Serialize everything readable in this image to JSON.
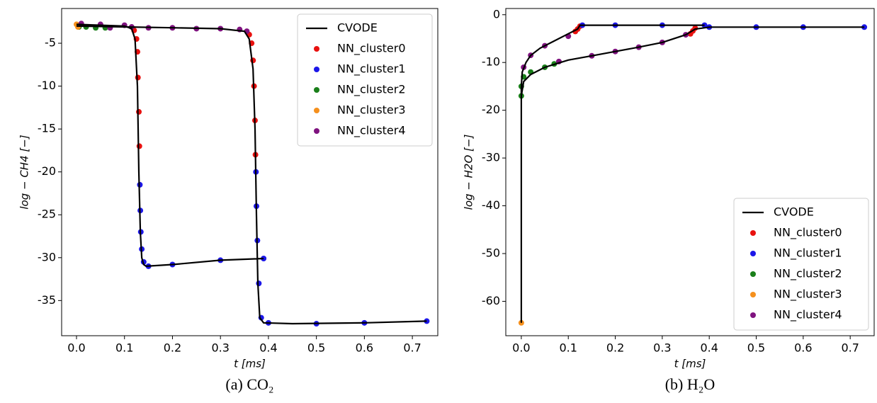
{
  "chart_data": [
    {
      "type": "line",
      "caption": "(a) CO₂",
      "xlabel": "t [ms]",
      "ylabel": "log − CH4 [−]",
      "xlim": [
        -0.031,
        0.753
      ],
      "ylim": [
        -39.1,
        -0.95
      ],
      "xticks": [
        {
          "value": 0,
          "label": "0.0"
        },
        {
          "value": 0.1,
          "label": "0.1"
        },
        {
          "value": 0.2,
          "label": "0.2"
        },
        {
          "value": 0.3,
          "label": "0.3"
        },
        {
          "value": 0.4,
          "label": "0.4"
        },
        {
          "value": 0.5,
          "label": "0.5"
        },
        {
          "value": 0.6,
          "label": "0.6"
        },
        {
          "value": 0.7,
          "label": "0.7"
        }
      ],
      "yticks": [
        -5,
        -10,
        -15,
        -20,
        -25,
        -30,
        -35
      ],
      "legend": "upper right",
      "series": [
        {
          "name": "CVODE",
          "type": "line",
          "color": "#000000",
          "x": [
            0,
            0.05,
            0.1,
            0.115,
            0.122,
            0.127,
            0.13,
            0.133,
            0.136,
            0.14,
            0.145,
            0.2,
            0.3,
            0.39,
            null,
            0,
            0.1,
            0.2,
            0.3,
            0.35,
            0.36,
            0.368,
            0.372,
            0.375,
            0.378,
            0.382,
            0.39,
            0.45,
            0.6,
            0.73
          ],
          "values": [
            -2.8,
            -2.9,
            -3.0,
            -3.3,
            -4.5,
            -10,
            -20,
            -27,
            -30,
            -30.8,
            -31,
            -30.8,
            -30.3,
            -30.1,
            null,
            -3.0,
            -3.1,
            -3.2,
            -3.3,
            -3.6,
            -4.5,
            -8,
            -15,
            -25,
            -33,
            -37,
            -37.6,
            -37.7,
            -37.6,
            -37.4
          ]
        },
        {
          "name": "NN_cluster0",
          "type": "scatter",
          "color": "#e8110f",
          "x": [
            0.12,
            0.125,
            0.127,
            0.128,
            0.13,
            0.131,
            0.36,
            0.365,
            0.368,
            0.37,
            0.372,
            0.373
          ],
          "values": [
            -3.5,
            -4.5,
            -6,
            -9,
            -13,
            -17,
            -4,
            -5,
            -7,
            -10,
            -14,
            -18
          ]
        },
        {
          "name": "NN_cluster1",
          "type": "scatter",
          "color": "#1c17e8",
          "x": [
            0.132,
            0.133,
            0.134,
            0.136,
            0.14,
            0.15,
            0.2,
            0.3,
            0.39,
            0.374,
            0.375,
            0.377,
            0.38,
            0.385,
            0.4,
            0.5,
            0.6,
            0.73
          ],
          "values": [
            -21.5,
            -24.5,
            -27,
            -29,
            -30.5,
            -31,
            -30.8,
            -30.3,
            -30.1,
            -20,
            -24,
            -28,
            -33,
            -37,
            -37.6,
            -37.7,
            -37.6,
            -37.4
          ]
        },
        {
          "name": "NN_cluster2",
          "type": "scatter",
          "color": "#1a7f1a",
          "x": [
            0.005,
            0.02,
            0.04,
            0.06
          ],
          "values": [
            -3.1,
            -3.1,
            -3.2,
            -3.2
          ]
        },
        {
          "name": "NN_cluster3",
          "type": "scatter",
          "color": "#f5901d",
          "x": [
            0,
            0.003
          ],
          "values": [
            -2.8,
            -3.1
          ]
        },
        {
          "name": "NN_cluster4",
          "type": "scatter",
          "color": "#7f137f",
          "x": [
            0.01,
            0.05,
            0.1,
            0.115,
            0.07,
            0.15,
            0.2,
            0.25,
            0.3,
            0.34,
            0.355
          ],
          "values": [
            -2.7,
            -2.8,
            -2.9,
            -3.1,
            -3.2,
            -3.2,
            -3.2,
            -3.3,
            -3.3,
            -3.4,
            -3.6
          ]
        }
      ]
    },
    {
      "type": "line",
      "caption": "(b) H₂O",
      "xlabel": "t [ms]",
      "ylabel": "log − H2O [−]",
      "xlim": [
        -0.033,
        0.751
      ],
      "ylim": [
        -67.2,
        1.3
      ],
      "xticks": [
        {
          "value": 0,
          "label": "0.0"
        },
        {
          "value": 0.1,
          "label": "0.1"
        },
        {
          "value": 0.2,
          "label": "0.2"
        },
        {
          "value": 0.3,
          "label": "0.3"
        },
        {
          "value": 0.4,
          "label": "0.4"
        },
        {
          "value": 0.5,
          "label": "0.5"
        },
        {
          "value": 0.6,
          "label": "0.6"
        },
        {
          "value": 0.7,
          "label": "0.7"
        }
      ],
      "yticks": [
        0,
        -10,
        -20,
        -30,
        -40,
        -50,
        -60
      ],
      "legend": "lower right",
      "series": [
        {
          "name": "CVODE",
          "type": "line",
          "color": "#000000",
          "x": [
            0,
            0,
            0.002,
            0.01,
            0.02,
            0.04,
            0.07,
            0.1,
            0.12,
            0.125,
            0.2,
            0.3,
            0.39,
            null,
            0,
            0.005,
            0.02,
            0.05,
            0.1,
            0.15,
            0.2,
            0.25,
            0.3,
            0.35,
            0.37,
            0.4,
            0.5,
            0.6,
            0.73
          ],
          "values": [
            -64.5,
            -15,
            -12,
            -10,
            -8.5,
            -7,
            -5.5,
            -4,
            -3,
            -2.2,
            -2.2,
            -2.2,
            -2.2,
            null,
            -17,
            -14,
            -12.5,
            -11,
            -9.5,
            -8.6,
            -7.7,
            -6.8,
            -5.8,
            -4.2,
            -3,
            -2.6,
            -2.6,
            -2.6,
            -2.6
          ]
        },
        {
          "name": "NN_cluster0",
          "type": "scatter",
          "color": "#e8110f",
          "x": [
            0.115,
            0.12,
            0.125,
            0.36,
            0.365,
            0.37
          ],
          "values": [
            -3.5,
            -3,
            -2.4,
            -4,
            -3.4,
            -2.8
          ]
        },
        {
          "name": "NN_cluster1",
          "type": "scatter",
          "color": "#1c17e8",
          "x": [
            0.13,
            0.2,
            0.3,
            0.39,
            0.4,
            0.5,
            0.6,
            0.73
          ],
          "values": [
            -2.2,
            -2.2,
            -2.2,
            -2.2,
            -2.6,
            -2.6,
            -2.6,
            -2.6
          ]
        },
        {
          "name": "NN_cluster2",
          "type": "scatter",
          "color": "#1a7f1a",
          "x": [
            0,
            0,
            0.005,
            0.02,
            0.05,
            0.07
          ],
          "values": [
            -17,
            -15,
            -13,
            -12,
            -11,
            -10.3
          ]
        },
        {
          "name": "NN_cluster3",
          "type": "scatter",
          "color": "#f5901d",
          "x": [
            0
          ],
          "values": [
            -64.5
          ]
        },
        {
          "name": "NN_cluster4",
          "type": "scatter",
          "color": "#7f137f",
          "x": [
            0.005,
            0.02,
            0.05,
            0.1,
            0.08,
            0.15,
            0.2,
            0.25,
            0.3,
            0.35
          ],
          "values": [
            -11,
            -8.5,
            -6.5,
            -4.5,
            -9.8,
            -8.6,
            -7.7,
            -6.8,
            -5.8,
            -4.2
          ]
        }
      ]
    }
  ]
}
